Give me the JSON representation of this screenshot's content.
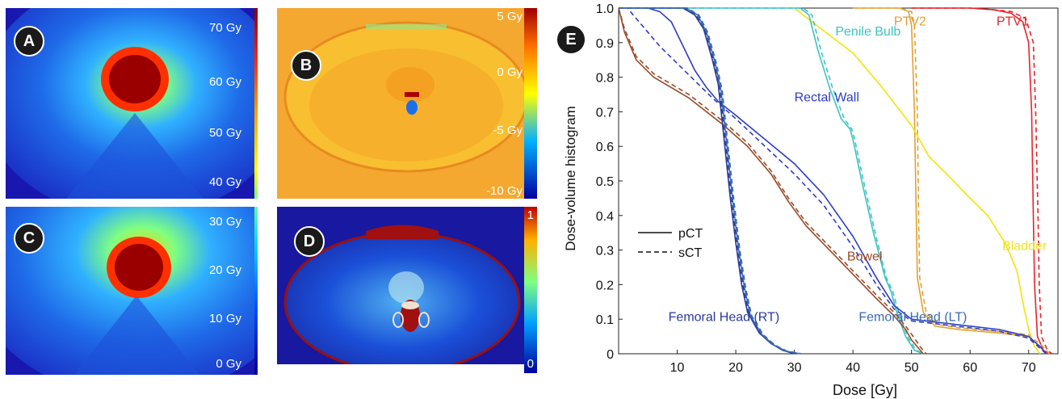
{
  "panels": {
    "A": {
      "badge": "A",
      "colorbar_labels": [
        "70 Gy",
        "60 Gy",
        "50 Gy",
        "40 Gy"
      ]
    },
    "B": {
      "badge": "B",
      "colorbar_labels": [
        "5 Gy",
        "0 Gy",
        "-5 Gy",
        "-10 Gy"
      ]
    },
    "C": {
      "badge": "C",
      "colorbar_labels": [
        "30 Gy",
        "20 Gy",
        "10 Gy",
        "0 Gy"
      ]
    },
    "D": {
      "badge": "D",
      "colorbar_labels": [
        "1",
        "0"
      ]
    },
    "E": {
      "badge": "E"
    }
  },
  "colors": {
    "jet_dark_blue": "#1010a0",
    "jet_blue": "#1a3ae0",
    "dark_red": "#8a0a0a",
    "orange": "#f29d28",
    "PTV1": "#e8232a",
    "PTV2": "#e2a132",
    "Bladder": "#f2e516",
    "Penile Bulb": "#3cc3c3",
    "Rectal Wall": "#2c3cc8",
    "Bowel": "#9b4a28",
    "Femoral Head (RT)": "#2a3a9a",
    "Femoral Head (LT)": "#3a6ab0"
  },
  "chart_data": {
    "type": "line",
    "title": "",
    "xlabel": "Dose [Gy]",
    "ylabel": "Dose-volume histogram",
    "xlim": [
      0,
      75
    ],
    "ylim": [
      0,
      1
    ],
    "x_ticks": [
      10,
      20,
      30,
      40,
      50,
      60,
      70
    ],
    "y_ticks": [
      0,
      0.1,
      0.2,
      0.3,
      0.4,
      0.5,
      0.6,
      0.7,
      0.8,
      0.9,
      1.0
    ],
    "legend": {
      "placement": "left",
      "entries": [
        {
          "label": "pCT",
          "style": "solid"
        },
        {
          "label": "sCT",
          "style": "dashed"
        }
      ]
    },
    "series": [
      {
        "name": "PTV1",
        "label_pos": [
          64.5,
          0.95
        ],
        "pCT": [
          [
            50,
            1
          ],
          [
            60,
            1
          ],
          [
            64,
            0.995
          ],
          [
            67,
            0.985
          ],
          [
            69,
            0.96
          ],
          [
            70,
            0.9
          ],
          [
            70.5,
            0.7
          ],
          [
            70.8,
            0.4
          ],
          [
            71,
            0.2
          ],
          [
            71.5,
            0.05
          ],
          [
            72.5,
            0.01
          ],
          [
            73.5,
            0
          ]
        ],
        "sCT": [
          [
            50,
            1
          ],
          [
            60,
            1
          ],
          [
            64,
            0.995
          ],
          [
            67,
            0.99
          ],
          [
            69.5,
            0.97
          ],
          [
            70.8,
            0.9
          ],
          [
            71.2,
            0.7
          ],
          [
            71.6,
            0.4
          ],
          [
            71.8,
            0.2
          ],
          [
            72.2,
            0.05
          ],
          [
            73.2,
            0.01
          ],
          [
            74,
            0
          ]
        ]
      },
      {
        "name": "PTV2",
        "label_pos": [
          47,
          0.95
        ],
        "pCT": [
          [
            40,
            1
          ],
          [
            48,
            1
          ],
          [
            49.5,
            0.99
          ],
          [
            50,
            0.95
          ],
          [
            50.5,
            0.7
          ],
          [
            50.8,
            0.4
          ],
          [
            51,
            0.22
          ],
          [
            52,
            0.12
          ],
          [
            54,
            0.08
          ],
          [
            58,
            0.07
          ],
          [
            65,
            0.06
          ],
          [
            70,
            0.05
          ],
          [
            72,
            0.02
          ],
          [
            73,
            0
          ]
        ],
        "sCT": [
          [
            40,
            1
          ],
          [
            48,
            1
          ],
          [
            50,
            0.99
          ],
          [
            50.5,
            0.95
          ],
          [
            51,
            0.7
          ],
          [
            51.2,
            0.4
          ],
          [
            51.4,
            0.22
          ],
          [
            52.5,
            0.12
          ],
          [
            54.5,
            0.085
          ],
          [
            58,
            0.075
          ],
          [
            65,
            0.065
          ],
          [
            70,
            0.055
          ],
          [
            72.5,
            0.02
          ],
          [
            73.5,
            0
          ]
        ]
      },
      {
        "name": "Bladder",
        "label_pos": [
          65.5,
          0.3
        ],
        "pCT": [
          [
            30,
            1
          ],
          [
            33,
            0.96
          ],
          [
            40,
            0.87
          ],
          [
            45,
            0.77
          ],
          [
            50,
            0.66
          ],
          [
            53,
            0.57
          ],
          [
            56,
            0.52
          ],
          [
            60,
            0.45
          ],
          [
            63,
            0.4
          ],
          [
            66,
            0.32
          ],
          [
            68,
            0.24
          ],
          [
            69,
            0.15
          ],
          [
            70,
            0.07
          ],
          [
            71,
            0.02
          ],
          [
            72,
            0
          ]
        ],
        "sCT": [
          [
            30,
            1
          ],
          [
            33,
            0.96
          ],
          [
            40,
            0.87
          ],
          [
            45,
            0.77
          ],
          [
            50,
            0.66
          ],
          [
            53,
            0.57
          ],
          [
            56,
            0.52
          ],
          [
            60,
            0.45
          ],
          [
            63,
            0.4
          ],
          [
            66,
            0.32
          ],
          [
            68,
            0.24
          ],
          [
            69,
            0.15
          ],
          [
            70,
            0.07
          ],
          [
            71,
            0.02
          ],
          [
            72,
            0
          ]
        ]
      },
      {
        "name": "Penile Bulb",
        "label_pos": [
          37,
          0.92
        ],
        "pCT": [
          [
            0,
            1
          ],
          [
            31,
            1
          ],
          [
            32.5,
            0.98
          ],
          [
            34,
            0.88
          ],
          [
            36,
            0.77
          ],
          [
            38,
            0.68
          ],
          [
            39.5,
            0.65
          ],
          [
            40,
            0.62
          ],
          [
            41.5,
            0.5
          ],
          [
            43.5,
            0.35
          ],
          [
            45.5,
            0.22
          ],
          [
            46.5,
            0.18
          ],
          [
            47.5,
            0.12
          ],
          [
            49,
            0.05
          ],
          [
            50.5,
            0.01
          ],
          [
            52,
            0
          ]
        ],
        "sCT": [
          [
            0,
            1
          ],
          [
            31.5,
            1
          ],
          [
            33,
            0.98
          ],
          [
            34.5,
            0.88
          ],
          [
            36.5,
            0.77
          ],
          [
            38.5,
            0.68
          ],
          [
            39.8,
            0.65
          ],
          [
            40.3,
            0.62
          ],
          [
            41.8,
            0.5
          ],
          [
            43.8,
            0.35
          ],
          [
            45.7,
            0.22
          ],
          [
            46.8,
            0.18
          ],
          [
            47.8,
            0.12
          ],
          [
            49.3,
            0.05
          ],
          [
            50.8,
            0.01
          ],
          [
            52.2,
            0
          ]
        ]
      },
      {
        "name": "Rectal Wall",
        "label_pos": [
          30,
          0.73
        ],
        "pCT": [
          [
            5,
            1
          ],
          [
            7,
            0.99
          ],
          [
            9,
            0.96
          ],
          [
            11,
            0.89
          ],
          [
            13,
            0.82
          ],
          [
            15,
            0.77
          ],
          [
            17,
            0.73
          ],
          [
            20,
            0.69
          ],
          [
            25,
            0.62
          ],
          [
            30,
            0.55
          ],
          [
            35,
            0.46
          ],
          [
            40,
            0.34
          ],
          [
            44,
            0.22
          ],
          [
            47,
            0.14
          ],
          [
            50,
            0.1
          ],
          [
            55,
            0.09
          ],
          [
            60,
            0.08
          ],
          [
            65,
            0.07
          ],
          [
            70,
            0.05
          ],
          [
            72,
            0.02
          ],
          [
            73,
            0
          ]
        ],
        "sCT": [
          [
            2,
            0.99
          ],
          [
            4,
            0.95
          ],
          [
            7,
            0.89
          ],
          [
            10,
            0.84
          ],
          [
            13,
            0.79
          ],
          [
            16,
            0.74
          ],
          [
            18,
            0.71
          ],
          [
            20,
            0.68
          ],
          [
            25,
            0.6
          ],
          [
            30,
            0.52
          ],
          [
            35,
            0.43
          ],
          [
            40,
            0.31
          ],
          [
            44,
            0.2
          ],
          [
            47,
            0.13
          ],
          [
            50,
            0.095
          ],
          [
            55,
            0.085
          ],
          [
            60,
            0.075
          ],
          [
            65,
            0.065
          ],
          [
            70,
            0.045
          ],
          [
            72,
            0.015
          ],
          [
            73,
            0
          ]
        ]
      },
      {
        "name": "Bowel",
        "label_pos": [
          39,
          0.27
        ],
        "pCT": [
          [
            0,
            1
          ],
          [
            1,
            0.93
          ],
          [
            3,
            0.85
          ],
          [
            6,
            0.8
          ],
          [
            9,
            0.77
          ],
          [
            12,
            0.74
          ],
          [
            15,
            0.7
          ],
          [
            18,
            0.66
          ],
          [
            22,
            0.6
          ],
          [
            26,
            0.52
          ],
          [
            29,
            0.44
          ],
          [
            32,
            0.37
          ],
          [
            36,
            0.3
          ],
          [
            40,
            0.23
          ],
          [
            44,
            0.16
          ],
          [
            47,
            0.11
          ],
          [
            49,
            0.07
          ],
          [
            50,
            0.04
          ],
          [
            51,
            0.02
          ],
          [
            52,
            0
          ]
        ],
        "sCT": [
          [
            0,
            1
          ],
          [
            1,
            0.94
          ],
          [
            3,
            0.86
          ],
          [
            6,
            0.81
          ],
          [
            9,
            0.78
          ],
          [
            12,
            0.75
          ],
          [
            15,
            0.71
          ],
          [
            18,
            0.67
          ],
          [
            22,
            0.61
          ],
          [
            26,
            0.53
          ],
          [
            29,
            0.45
          ],
          [
            32,
            0.38
          ],
          [
            36,
            0.31
          ],
          [
            40,
            0.24
          ],
          [
            44,
            0.17
          ],
          [
            47,
            0.12
          ],
          [
            49,
            0.08
          ],
          [
            50.5,
            0.045
          ],
          [
            51.5,
            0.02
          ],
          [
            52.5,
            0
          ]
        ]
      },
      {
        "name": "Femoral Head (RT)",
        "label_pos": [
          8.5,
          0.095
        ],
        "pCT": [
          [
            0,
            1
          ],
          [
            11,
            1
          ],
          [
            13,
            0.98
          ],
          [
            14.5,
            0.94
          ],
          [
            16,
            0.85
          ],
          [
            17,
            0.78
          ],
          [
            18,
            0.62
          ],
          [
            19,
            0.46
          ],
          [
            20,
            0.32
          ],
          [
            21,
            0.2
          ],
          [
            22,
            0.12
          ],
          [
            24,
            0.06
          ],
          [
            26,
            0.03
          ],
          [
            28,
            0.01
          ],
          [
            30,
            0
          ]
        ],
        "sCT": [
          [
            0,
            1
          ],
          [
            11.2,
            1
          ],
          [
            13.2,
            0.98
          ],
          [
            14.7,
            0.94
          ],
          [
            16.2,
            0.85
          ],
          [
            17.2,
            0.78
          ],
          [
            18.2,
            0.62
          ],
          [
            19.2,
            0.46
          ],
          [
            20.2,
            0.32
          ],
          [
            21.2,
            0.2
          ],
          [
            22.2,
            0.12
          ],
          [
            24.2,
            0.06
          ],
          [
            26.2,
            0.03
          ],
          [
            28.2,
            0.01
          ],
          [
            30.2,
            0
          ]
        ]
      },
      {
        "name": "Femoral Head (LT)",
        "label_pos": [
          41,
          0.095
        ],
        "pCT": [
          [
            0,
            1
          ],
          [
            11.5,
            1
          ],
          [
            13.5,
            0.98
          ],
          [
            15,
            0.93
          ],
          [
            16.5,
            0.84
          ],
          [
            17.5,
            0.76
          ],
          [
            18.5,
            0.6
          ],
          [
            19.5,
            0.44
          ],
          [
            20.5,
            0.3
          ],
          [
            21.5,
            0.19
          ],
          [
            22.5,
            0.11
          ],
          [
            24.5,
            0.055
          ],
          [
            26.5,
            0.025
          ],
          [
            28.5,
            0.008
          ],
          [
            31,
            0
          ]
        ],
        "sCT": [
          [
            0,
            1
          ],
          [
            11.7,
            1
          ],
          [
            13.7,
            0.98
          ],
          [
            15.2,
            0.93
          ],
          [
            16.7,
            0.84
          ],
          [
            17.7,
            0.76
          ],
          [
            18.7,
            0.6
          ],
          [
            19.7,
            0.44
          ],
          [
            20.7,
            0.3
          ],
          [
            21.7,
            0.19
          ],
          [
            22.7,
            0.11
          ],
          [
            24.7,
            0.055
          ],
          [
            26.7,
            0.025
          ],
          [
            28.7,
            0.008
          ],
          [
            31.2,
            0
          ]
        ]
      }
    ]
  }
}
